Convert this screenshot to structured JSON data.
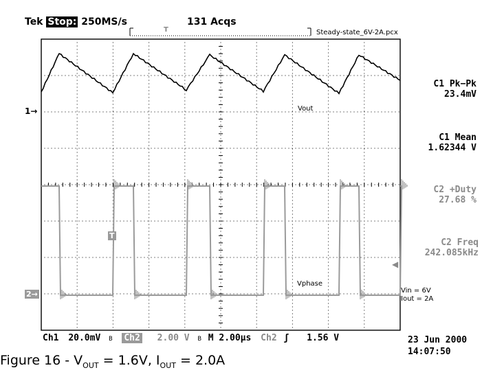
{
  "header": {
    "brand": "Tek",
    "state": "Stop:",
    "sample_rate": "250MS/s",
    "acqs": "131 Acqs",
    "filename": "Steady-state_6V-2A.pcx",
    "trigger_marker": "T"
  },
  "measurements": [
    {
      "label": "C1 Pk−Pk",
      "value": "23.4mV",
      "color": "#000000"
    },
    {
      "label": "C1 Mean",
      "value": "1.62344 V",
      "color": "#000000"
    },
    {
      "label": "C2 +Duty",
      "value": "27.68 %",
      "color": "#8a8a8a"
    },
    {
      "label": "C2 Freq",
      "value": "242.085kHz",
      "color": "#8a8a8a"
    }
  ],
  "annotations": {
    "vout": "Vout",
    "vphase": "Vphase",
    "vin": "Vin = 6V",
    "iout": "Iout = 2A",
    "ch1_marker": "1→",
    "ch2_marker": "2→",
    "trig_marker": "T"
  },
  "footer": {
    "ch1": "Ch1",
    "ch1_scale": "20.0mV",
    "bw1": "B",
    "ch2": "Ch2",
    "ch2_scale": "2.00 V",
    "bw2": "B",
    "timebase": "M 2.00µs",
    "trig_src": "Ch2",
    "trig_slope": "ʃ",
    "trig_level": "1.56 V",
    "date": "23 Jun 2000",
    "time": "14:07:50"
  },
  "caption": {
    "prefix": "Figure 16 - V",
    "sub1": "OUT",
    "mid": " = 1.6V, I",
    "sub2": "OUT",
    "suffix": " = 2.0A"
  },
  "colors": {
    "ch1_trace": "#000000",
    "ch2_trace": "#9a9a9a",
    "grid": "#000000"
  }
}
